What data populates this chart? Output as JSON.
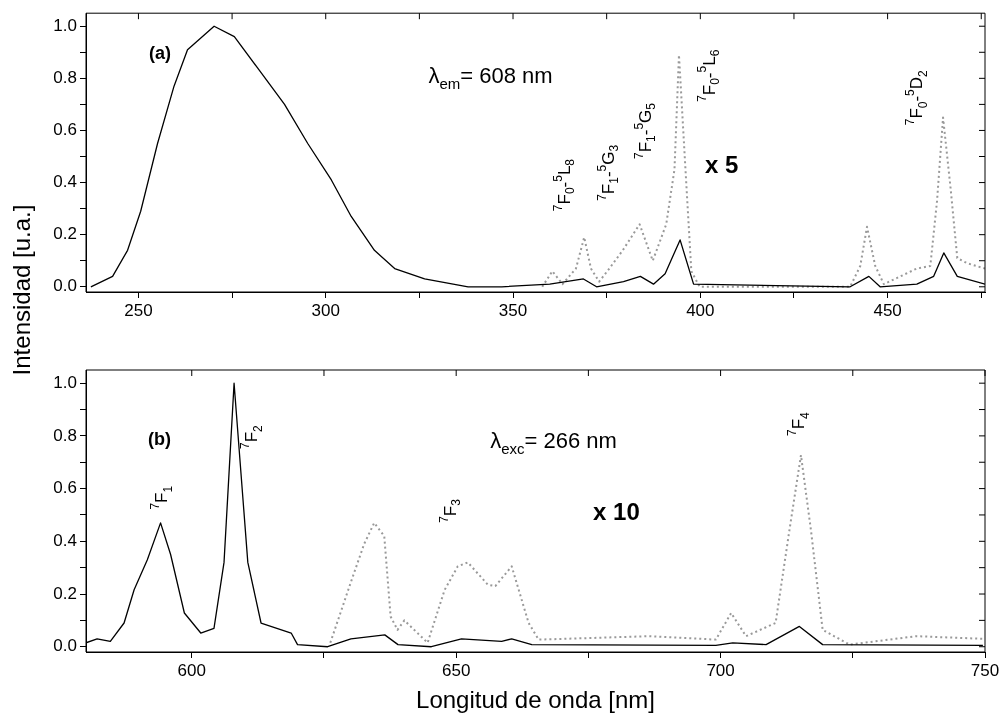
{
  "chart_data": [
    {
      "type": "line",
      "ylabel": "Intensidad [u.a.]",
      "xlim": [
        236,
        476
      ],
      "ylim": [
        -0.02,
        1.05
      ],
      "xticks": [
        250,
        {
          "value": 275,
          "label": null
        },
        300,
        {
          "value": 325,
          "label": null
        },
        350,
        {
          "value": 375,
          "label": null
        },
        400,
        {
          "value": 425,
          "label": null
        },
        450,
        {
          "value": 475,
          "label": null
        }
      ],
      "yticks": [
        {
          "value": 0,
          "label": "0.0"
        },
        {
          "value": 0.1,
          "label": null
        },
        {
          "value": 0.2,
          "label": "0.2"
        },
        {
          "value": 0.3,
          "label": null
        },
        {
          "value": 0.4,
          "label": "0.4"
        },
        {
          "value": 0.5,
          "label": null
        },
        {
          "value": 0.6,
          "label": "0.6"
        },
        {
          "value": 0.7,
          "label": null
        },
        {
          "value": 0.8,
          "label": "0.8"
        },
        {
          "value": 0.9,
          "label": null
        },
        {
          "value": 1,
          "label": "1.0"
        }
      ],
      "marker": "none",
      "series": [
        {
          "color": "#000000",
          "line_style": "solid",
          "x": [
            237.3,
            243.1,
            247.1,
            250.6,
            255.1,
            259.5,
            263.1,
            270.2,
            275.6,
            281.8,
            289,
            295.2,
            301.5,
            306.8,
            313,
            318.4,
            326.4,
            338,
            347,
            359.8,
            368.8,
            372.3,
            379.5,
            384,
            387.5,
            390.6,
            394.6,
            398.2,
            440,
            445,
            448,
            457.8,
            462.3,
            465,
            468.6,
            476
          ],
          "values": [
            0,
            0.04,
            0.14,
            0.29,
            0.55,
            0.77,
            0.91,
            1.0,
            0.96,
            0.84,
            0.7,
            0.55,
            0.41,
            0.27,
            0.14,
            0.07,
            0.03,
            0,
            0,
            0.01,
            0.03,
            0,
            0.02,
            0.04,
            0.01,
            0.05,
            0.18,
            0.01,
            0,
            0.04,
            0,
            0.01,
            0.04,
            0.13,
            0.04,
            0.01
          ]
        },
        {
          "color": "#999999",
          "line_style": "dotted",
          "x": [
            357.8,
            360.5,
            363.2,
            366.8,
            369,
            370.8,
            373,
            375.7,
            379.3,
            383.8,
            387.3,
            390.9,
            393.1,
            394.3,
            395.8,
            397.6,
            399.8,
            440,
            442.7,
            444.5,
            446.7,
            449,
            457.8,
            461.4,
            463.2,
            464.8,
            466.8,
            468.6,
            471.3,
            476
          ],
          "values": [
            0,
            0.06,
            0.01,
            0.07,
            0.19,
            0.07,
            0.02,
            0.07,
            0.14,
            0.24,
            0.1,
            0.24,
            0.45,
            0.89,
            0.51,
            0.06,
            0,
            0,
            0.08,
            0.23,
            0.08,
            0.01,
            0.07,
            0.08,
            0.33,
            0.65,
            0.38,
            0.11,
            0.09,
            0.07
          ]
        }
      ],
      "annotations": [
        "(a)",
        "λ$_{em}$= 608 nm",
        "x 5",
        "$^{7}$F$_{0}$-$^{5}$L$_{8}$",
        "$^{7}$F$_{1}$-$^{5}$G$_{3}$",
        "$^{7}$F$_{1}$-$^{5}$G$_{5}$",
        "$^{7}$F$_{0}$-$^{5}$L$_{6}$",
        "$^{7}$F$_{0}$-$^{5}$D$_{2}$"
      ]
    },
    {
      "type": "line",
      "xlabel": "Longitud de onda [nm]",
      "xlim": [
        580,
        750
      ],
      "ylim": [
        -0.02,
        1.05
      ],
      "xticks": [
        600,
        {
          "value": 625,
          "label": null
        },
        650,
        {
          "value": 675,
          "label": null
        },
        700,
        {
          "value": 725,
          "label": null
        },
        750
      ],
      "yticks": [
        {
          "value": 0,
          "label": "0.0"
        },
        {
          "value": 0.1,
          "label": null
        },
        {
          "value": 0.2,
          "label": "0.2"
        },
        {
          "value": 0.3,
          "label": null
        },
        {
          "value": 0.4,
          "label": "0.4"
        },
        {
          "value": 0.5,
          "label": null
        },
        {
          "value": 0.6,
          "label": "0.6"
        },
        {
          "value": 0.7,
          "label": null
        },
        {
          "value": 0.8,
          "label": "0.8"
        },
        {
          "value": 0.9,
          "label": null
        },
        {
          "value": 1,
          "label": "1.0"
        }
      ],
      "marker": "none",
      "series": [
        {
          "color": "#000000",
          "line_style": "solid",
          "x": [
            580,
            582.1,
            584.6,
            587.2,
            589.1,
            591.6,
            594.1,
            596,
            598.6,
            601.7,
            604.2,
            606.1,
            608,
            610.6,
            613.1,
            618.8,
            620,
            625.7,
            630.1,
            636.5,
            639,
            645.3,
            651,
            658.6,
            660.5,
            664.3,
            699.1,
            702.3,
            708.6,
            714.9,
            719.3,
            749.6
          ],
          "values": [
            0.015,
            0.03,
            0.02,
            0.09,
            0.216,
            0.33,
            0.47,
            0.35,
            0.128,
            0.052,
            0.07,
            0.32,
            1.0,
            0.32,
            0.09,
            0.052,
            0.008,
            0,
            0.03,
            0.045,
            0.008,
            0,
            0.03,
            0.02,
            0.03,
            0.008,
            0.005,
            0.015,
            0.008,
            0.077,
            0.008,
            0.005
          ]
        },
        {
          "color": "#999999",
          "line_style": "dotted",
          "x": [
            626.2,
            630,
            632.6,
            634.5,
            636.4,
            637.6,
            638.9,
            640.2,
            644.6,
            647.8,
            650.3,
            652.2,
            656,
            657.4,
            660.5,
            663.7,
            665.6,
            686.5,
            699.1,
            702,
            704.8,
            710.4,
            713,
            715.2,
            717.1,
            719.3,
            724.4,
            737,
            749.6
          ],
          "values": [
            0.015,
            0.24,
            0.39,
            0.47,
            0.42,
            0.115,
            0.064,
            0.1,
            0.015,
            0.215,
            0.305,
            0.32,
            0.235,
            0.23,
            0.305,
            0.09,
            0.027,
            0.04,
            0.027,
            0.128,
            0.04,
            0.09,
            0.44,
            0.727,
            0.44,
            0.064,
            0.008,
            0.04,
            0.03
          ]
        }
      ],
      "annotations": [
        "(b)",
        "λ$_{exc}$= 266 nm",
        "x 10",
        "$^{7}$F$_{1}$",
        "$^{7}$F$_{2}$",
        "$^{7}$F$_{3}$",
        "$^{7}$F$_{4}$"
      ]
    }
  ]
}
